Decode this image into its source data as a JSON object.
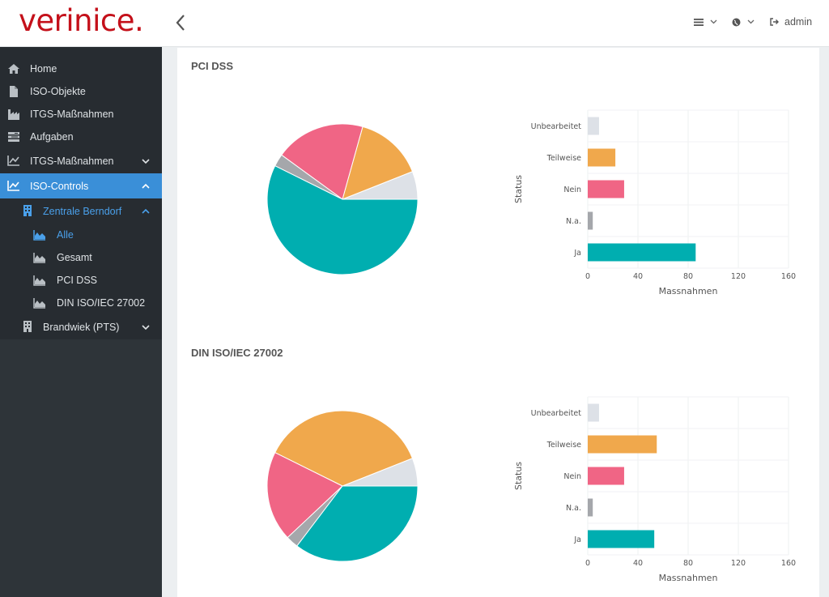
{
  "app": {
    "logo": "verinice."
  },
  "topbar": {
    "user": "admin"
  },
  "sidebar": {
    "items": [
      {
        "label": "Home",
        "icon": "home-icon"
      },
      {
        "label": "ISO-Objekte",
        "icon": "file-icon"
      },
      {
        "label": "ITGS-Maßnahmen",
        "icon": "industry-icon"
      },
      {
        "label": "Aufgaben",
        "icon": "tasks-icon"
      },
      {
        "label": "ITGS-Maßnahmen",
        "icon": "line-chart-icon"
      },
      {
        "label": "ISO-Controls",
        "icon": "line-chart-icon"
      },
      {
        "label": "Zentrale Berndorf",
        "icon": "building-icon"
      },
      {
        "label": "Alle",
        "icon": "area-chart-icon"
      },
      {
        "label": "Gesamt",
        "icon": "area-chart-icon"
      },
      {
        "label": "PCI DSS",
        "icon": "area-chart-icon"
      },
      {
        "label": "DIN ISO/IEC 27002",
        "icon": "area-chart-icon"
      },
      {
        "label": "Brandwiek (PTS)",
        "icon": "building-icon"
      }
    ]
  },
  "colors": {
    "ja": "#00aeb0",
    "na": "#a5a7ab",
    "nein": "#f06585",
    "teilweise": "#f0a84c",
    "unbearbeitet": "#dde1e7",
    "accent": "#3a8fd8",
    "brand": "#c4101a"
  },
  "sections": [
    {
      "title": "PCI DSS"
    },
    {
      "title": "DIN ISO/IEC 27002"
    }
  ],
  "chart_data": [
    {
      "type": "pie",
      "categories": [
        "Unbearbeitet",
        "Teilweise",
        "Nein",
        "N.a.",
        "Ja"
      ],
      "values": [
        9,
        22,
        29,
        4,
        86
      ]
    },
    {
      "type": "bar",
      "orientation": "horizontal",
      "categories": [
        "Unbearbeitet",
        "Teilweise",
        "Nein",
        "N.a.",
        "Ja"
      ],
      "values": [
        9,
        22,
        29,
        4,
        86
      ],
      "xlabel": "Massnahmen",
      "ylabel": "Status",
      "xlim": [
        0,
        160
      ],
      "xticks": [
        "0",
        "40",
        "80",
        "120",
        "160"
      ]
    },
    {
      "type": "pie",
      "categories": [
        "Unbearbeitet",
        "Teilweise",
        "Nein",
        "N.a.",
        "Ja"
      ],
      "values": [
        9,
        55,
        29,
        4,
        53
      ]
    },
    {
      "type": "bar",
      "orientation": "horizontal",
      "categories": [
        "Unbearbeitet",
        "Teilweise",
        "Nein",
        "N.a.",
        "Ja"
      ],
      "values": [
        9,
        55,
        29,
        4,
        53
      ],
      "xlabel": "Massnahmen",
      "ylabel": "Status",
      "xlim": [
        0,
        160
      ],
      "xticks": [
        "0",
        "40",
        "80",
        "120",
        "160"
      ]
    }
  ]
}
